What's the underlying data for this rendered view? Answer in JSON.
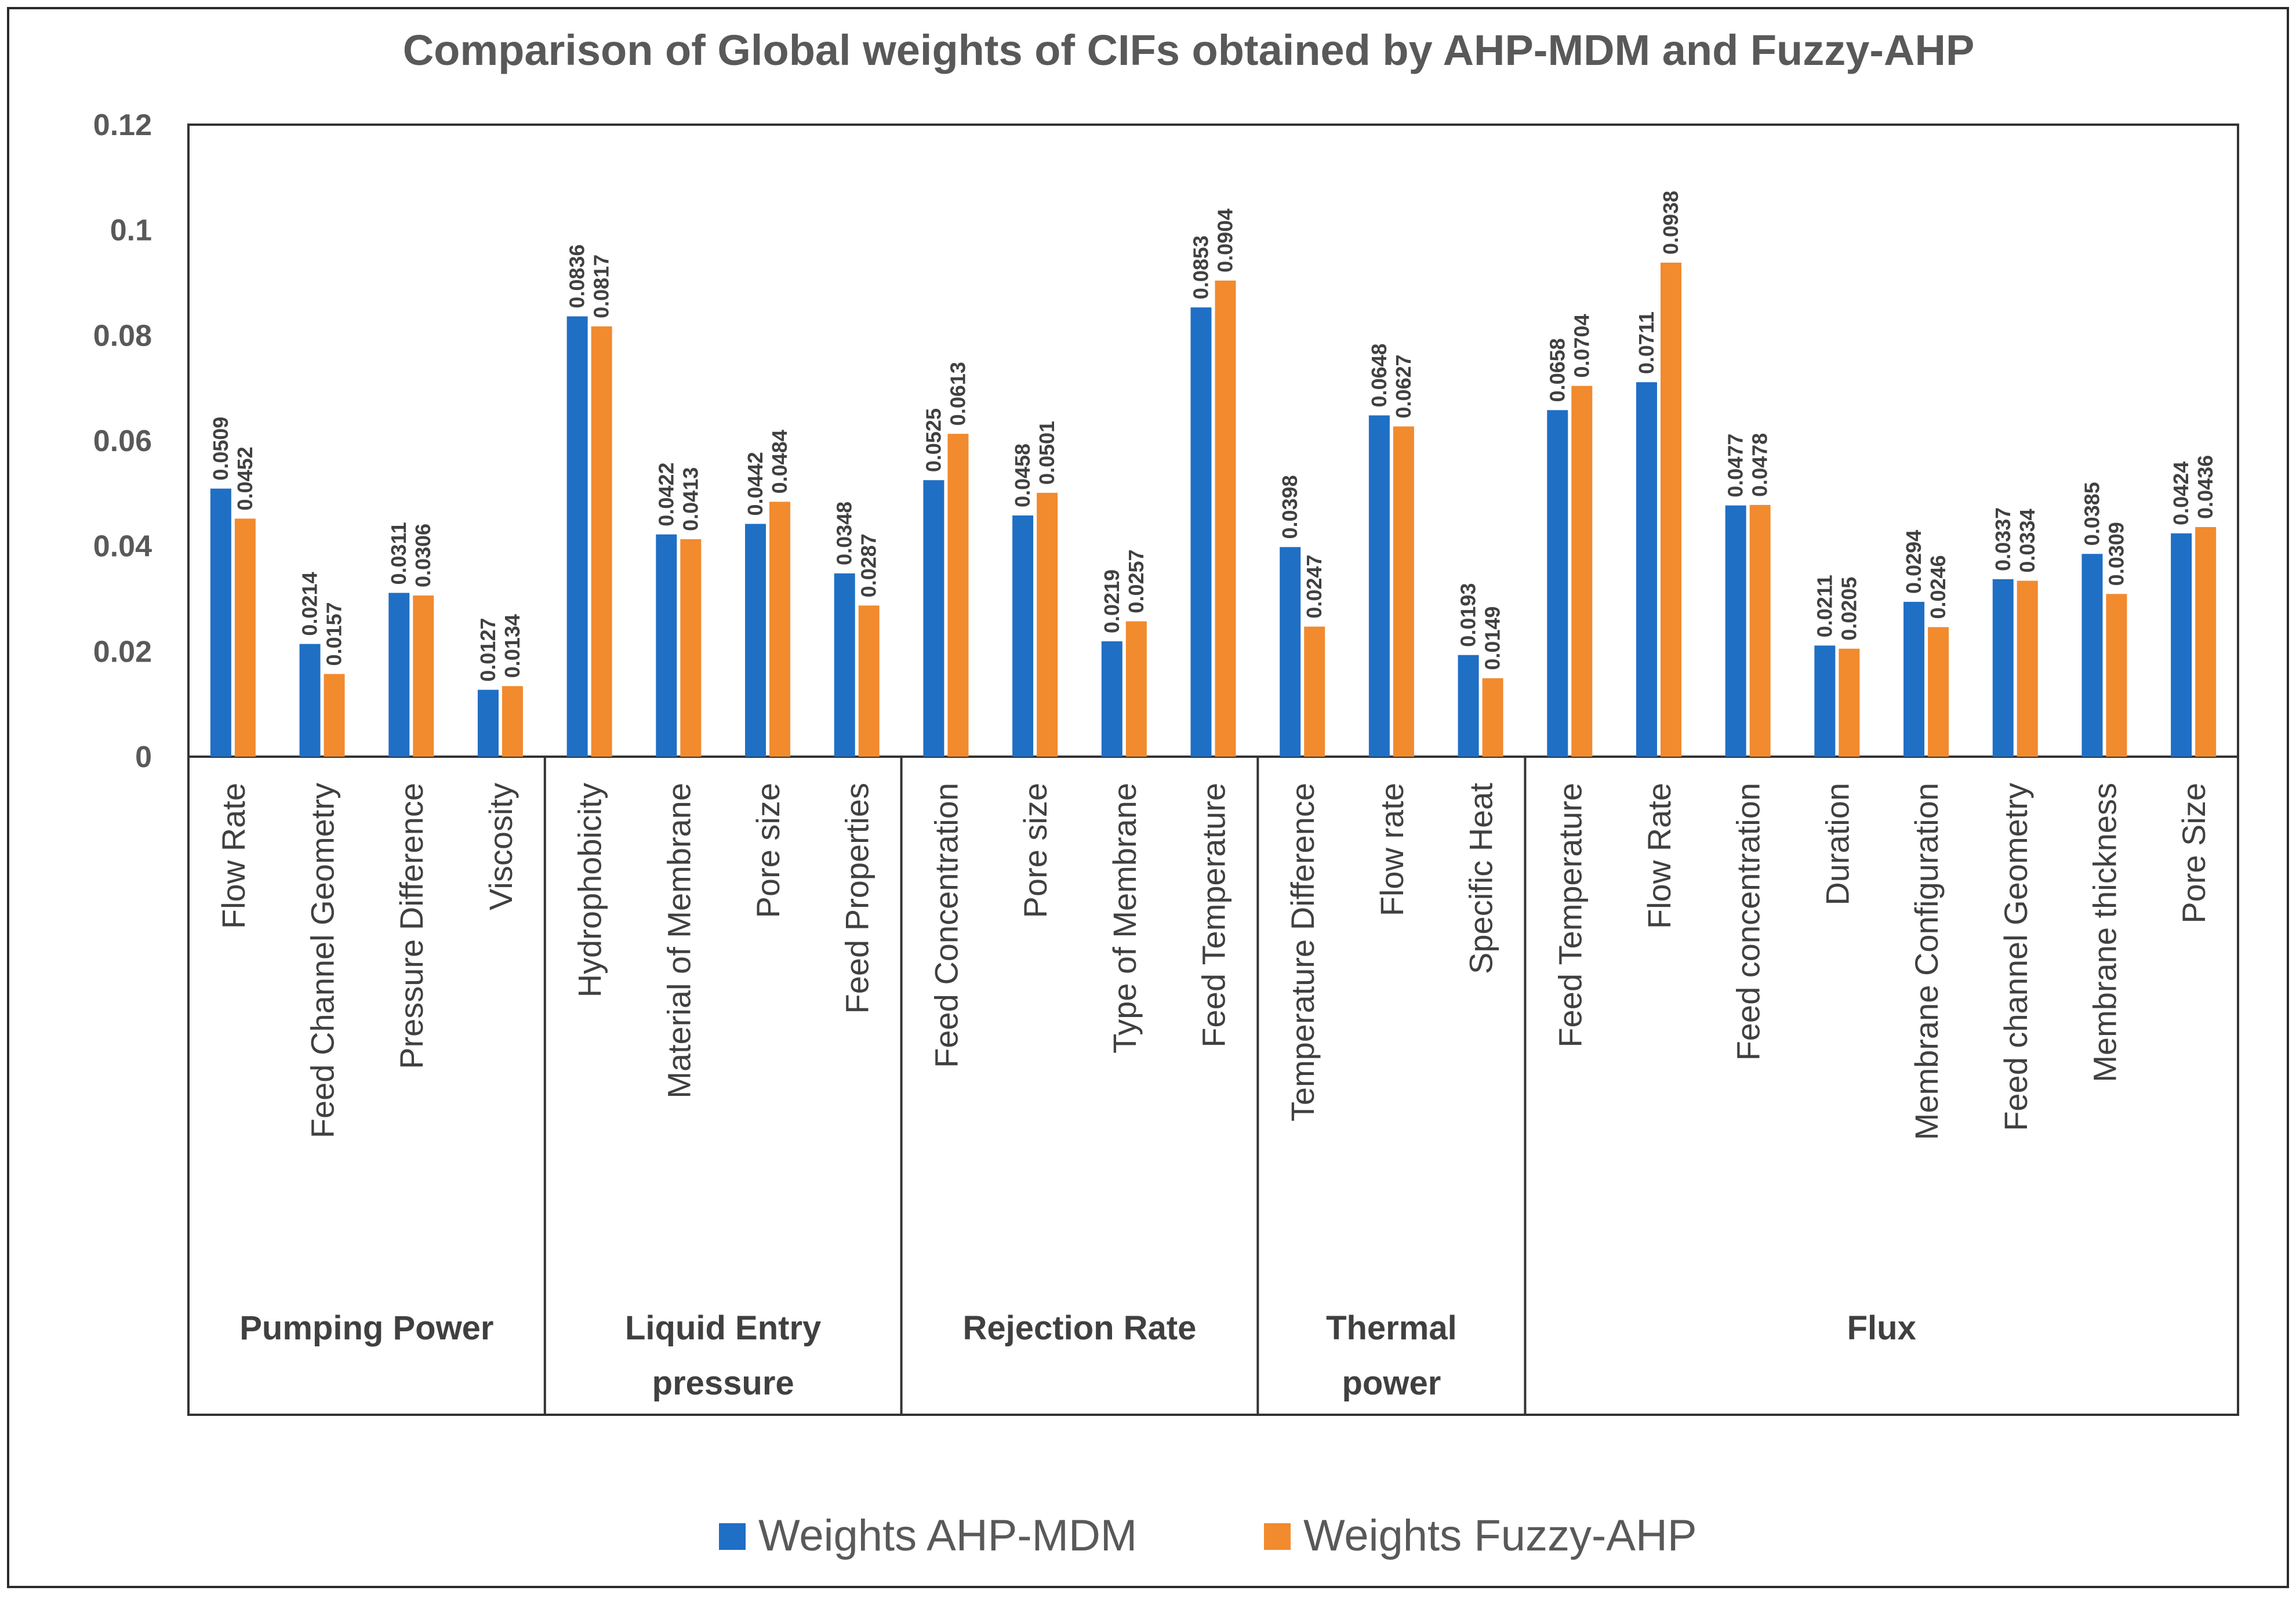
{
  "chart_data": {
    "type": "bar",
    "title": "Comparison of Global weights of CIFs obtained by AHP-MDM and Fuzzy-AHP",
    "xlabel": "",
    "ylabel": "",
    "ylim": [
      0,
      0.12
    ],
    "yticks": [
      0,
      0.02,
      0.04,
      0.06,
      0.08,
      0.1,
      0.12
    ],
    "ytick_labels": [
      "0",
      "0.02",
      "0.04",
      "0.06",
      "0.08",
      "0.1",
      "0.12"
    ],
    "grid": false,
    "legend_position": "bottom",
    "groups": [
      {
        "label_lines": [
          "Pumping Power"
        ],
        "count": 4
      },
      {
        "label_lines": [
          "Liquid Entry",
          "pressure"
        ],
        "count": 4
      },
      {
        "label_lines": [
          "Rejection Rate"
        ],
        "count": 4
      },
      {
        "label_lines": [
          "Thermal",
          "power"
        ],
        "count": 3
      },
      {
        "label_lines": [
          "Flux"
        ],
        "count": 8
      }
    ],
    "categories": [
      "Flow Rate",
      "Feed Channel Geometry",
      "Pressure Difference",
      "Viscosity",
      "Hydrophobicity",
      "Material of Membrane",
      "Pore size",
      "Feed Properties",
      "Feed Concentration",
      "Pore size",
      "Type of Membrane",
      "Feed Temperature",
      "Temperature Difference",
      "Flow rate",
      "Specific Heat",
      "Feed Temperature",
      "Flow Rate",
      "Feed concentration",
      "Duration",
      "Membrane Configuration",
      "Feed channel Geometry",
      "Membrane thickness",
      "Pore Size"
    ],
    "series": [
      {
        "name": "Weights AHP-MDM",
        "color": "#1F6FC5",
        "values": [
          0.0509,
          0.0214,
          0.0311,
          0.0127,
          0.0836,
          0.0422,
          0.0442,
          0.0348,
          0.0525,
          0.0458,
          0.0219,
          0.0853,
          0.0398,
          0.0648,
          0.0193,
          0.0658,
          0.0711,
          0.0477,
          0.0211,
          0.0294,
          0.0337,
          0.0385,
          0.0424
        ],
        "labels": [
          "0.0509",
          "0.0214",
          "0.0311",
          "0.0127",
          "0.0836",
          "0.0422",
          "0.0442",
          "0.0348",
          "0.0525",
          "0.0458",
          "0.0219",
          "0.0853",
          "0.0398",
          "0.0648",
          "0.0193",
          "0.0658",
          "0.0711",
          "0.0477",
          "0.0211",
          "0.0294",
          "0.0337",
          "0.0385",
          "0.0424"
        ]
      },
      {
        "name": "Weights Fuzzy-AHP",
        "color": "#F28A2E",
        "values": [
          0.0452,
          0.0157,
          0.0306,
          0.0134,
          0.0817,
          0.0413,
          0.0484,
          0.0287,
          0.0613,
          0.0501,
          0.0257,
          0.0904,
          0.0247,
          0.0627,
          0.0149,
          0.0704,
          0.0938,
          0.0478,
          0.0205,
          0.0246,
          0.0334,
          0.0309,
          0.0436
        ],
        "labels": [
          "0.0452",
          "0.0157",
          "0.0306",
          "0.0134",
          "0.0817",
          "0.0413",
          "0.0484",
          "0.0287",
          "0.0613",
          "0.0501",
          "0.0257",
          "0.0904",
          "0.0247",
          "0.0627",
          "0.0149",
          "0.0704",
          "0.0938",
          "0.0478",
          "0.0205",
          "0.0246",
          "0.0334",
          "0.0309",
          "0.0436"
        ]
      }
    ]
  }
}
